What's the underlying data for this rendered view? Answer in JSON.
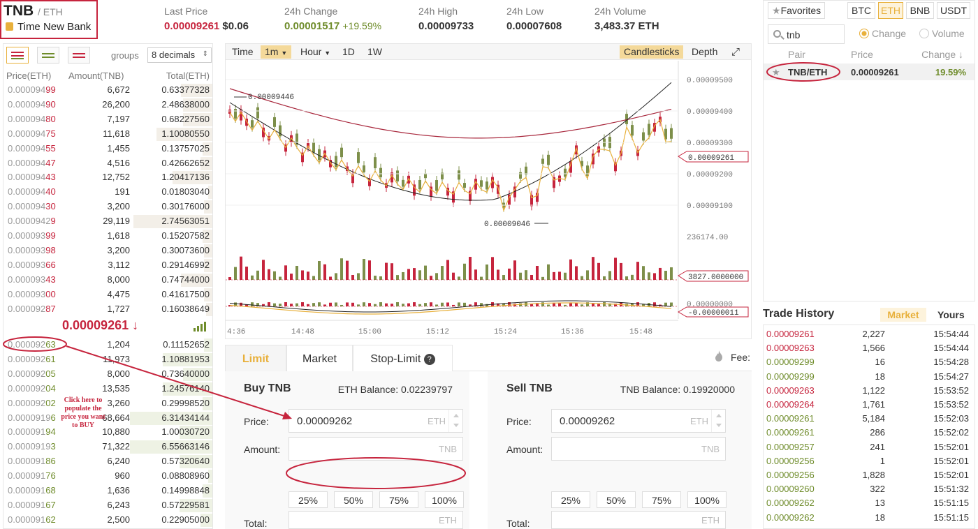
{
  "header": {
    "base": "TNB",
    "quote": "/ ETH",
    "name": "Time New Bank",
    "stats": {
      "last_price_label": "Last Price",
      "last_price": "0.00009261",
      "last_price_usd": "$0.06",
      "change_label": "24h Change",
      "change": "0.00001517",
      "change_pct": "+19.59%",
      "high_label": "24h High",
      "high": "0.00009733",
      "low_label": "24h Low",
      "low": "0.00007608",
      "volume_label": "24h Volume",
      "volume": "3,483.37 ETH"
    }
  },
  "orderbook": {
    "groups_label": "groups",
    "groups_value": "8 decimals",
    "columns": [
      "Price(ETH)",
      "Amount(TNB)",
      "Total(ETH)"
    ],
    "asks": [
      {
        "pre": "0.000094",
        "hi": "99",
        "amount": "6,672",
        "total": "0.63377328",
        "depth": 0.38
      },
      {
        "pre": "0.000094",
        "hi": "90",
        "amount": "26,200",
        "total": "2.48638000",
        "depth": 0.36
      },
      {
        "pre": "0.000094",
        "hi": "80",
        "amount": "7,197",
        "total": "0.68227560",
        "depth": 0.36
      },
      {
        "pre": "0.000094",
        "hi": "75",
        "amount": "11,618",
        "total": "1.10080550",
        "depth": 0.68
      },
      {
        "pre": "0.000094",
        "hi": "55",
        "amount": "1,455",
        "total": "0.13757025",
        "depth": 0.12
      },
      {
        "pre": "0.000094",
        "hi": "47",
        "amount": "4,516",
        "total": "0.42662652",
        "depth": 0.14
      },
      {
        "pre": "0.000094",
        "hi": "43",
        "amount": "12,752",
        "total": "1.20417136",
        "depth": 0.48
      },
      {
        "pre": "0.000094",
        "hi": "40",
        "amount": "191",
        "total": "0.01803040",
        "depth": 0.05
      },
      {
        "pre": "0.000094",
        "hi": "30",
        "amount": "3,200",
        "total": "0.30176000",
        "depth": 0.1
      },
      {
        "pre": "0.0000942",
        "hi": "9",
        "amount": "29,119",
        "total": "2.74563051",
        "depth": 0.96
      },
      {
        "pre": "0.000093",
        "hi": "99",
        "amount": "1,618",
        "total": "0.15207582",
        "depth": 0.12
      },
      {
        "pre": "0.000093",
        "hi": "98",
        "amount": "3,200",
        "total": "0.30073600",
        "depth": 0.1
      },
      {
        "pre": "0.000093",
        "hi": "66",
        "amount": "3,112",
        "total": "0.29146992",
        "depth": 0.1
      },
      {
        "pre": "0.000093",
        "hi": "43",
        "amount": "8,000",
        "total": "0.74744000",
        "depth": 0.38
      },
      {
        "pre": "0.000093",
        "hi": "00",
        "amount": "4,475",
        "total": "0.41617500",
        "depth": 0.1
      },
      {
        "pre": "0.000092",
        "hi": "87",
        "amount": "1,727",
        "total": "0.16038649",
        "depth": 0.08
      }
    ],
    "mid_price": "0.00009261",
    "mid_arrow": "↓",
    "bids": [
      {
        "pre": "0.000092",
        "hi": "63",
        "amount": "1,204",
        "total": "0.11152652",
        "depth": 0.1
      },
      {
        "pre": "0.000092",
        "hi": "61",
        "amount": "11,973",
        "total": "1.10881953",
        "depth": 0.6
      },
      {
        "pre": "0.000092",
        "hi": "05",
        "amount": "8,000",
        "total": "0.73640000",
        "depth": 0.36
      },
      {
        "pre": "0.000092",
        "hi": "04",
        "amount": "13,535",
        "total": "1.24576140",
        "depth": 0.6
      },
      {
        "pre": "0.000092",
        "hi": "02",
        "amount": "3,260",
        "total": "0.29998520",
        "depth": 0.12
      },
      {
        "pre": "0.0000919",
        "hi": "6",
        "amount": "68,664",
        "total": "6.31434144",
        "depth": 1.0
      },
      {
        "pre": "0.000091",
        "hi": "94",
        "amount": "10,880",
        "total": "1.00030720",
        "depth": 0.4
      },
      {
        "pre": "0.0000919",
        "hi": "3",
        "amount": "71,322",
        "total": "6.55663146",
        "depth": 1.0
      },
      {
        "pre": "0.000091",
        "hi": "86",
        "amount": "6,240",
        "total": "0.57320640",
        "depth": 0.4
      },
      {
        "pre": "0.000091",
        "hi": "76",
        "amount": "960",
        "total": "0.08808960",
        "depth": 0.05
      },
      {
        "pre": "0.000091",
        "hi": "68",
        "amount": "1,636",
        "total": "0.14998848",
        "depth": 0.12
      },
      {
        "pre": "0.000091",
        "hi": "67",
        "amount": "6,243",
        "total": "0.57229581",
        "depth": 0.4
      },
      {
        "pre": "0.000091",
        "hi": "62",
        "amount": "2,500",
        "total": "0.22905000",
        "depth": 0.14
      }
    ],
    "annotation": "Click here to populate the price you want to BUY"
  },
  "chart": {
    "toolbar": {
      "time": "Time",
      "interval": "1m",
      "hour": "Hour",
      "d1": "1D",
      "w1": "1W",
      "candles": "Candlesticks",
      "depth": "Depth"
    },
    "price_ticks": [
      "0.00009500",
      "0.00009400",
      "0.00009300",
      "0.00009200",
      "0.00009100"
    ],
    "current_price_label": "0.00009261",
    "high_marker": "0.00009446",
    "low_marker": "0.00009046",
    "volume_max_label": "236174.00",
    "volume_current_label": "3827.0000000",
    "macd_labels": [
      "0.00000000",
      "-0.00000011"
    ],
    "time_ticks": [
      "4:36",
      "14:48",
      "15:00",
      "15:12",
      "15:24",
      "15:36",
      "15:48"
    ]
  },
  "form": {
    "tabs": [
      "Limit",
      "Market",
      "Stop-Limit"
    ],
    "fee_label": "Fee:",
    "buy": {
      "title": "Buy TNB",
      "balance": "ETH Balance: 0.02239797",
      "price_label": "Price:",
      "price_value": "0.00009262",
      "price_unit": "ETH",
      "amount_label": "Amount:",
      "amount_unit": "TNB",
      "total_label": "Total:",
      "total_unit": "ETH"
    },
    "sell": {
      "title": "Sell TNB",
      "balance": "TNB Balance: 0.19920000",
      "price_label": "Price:",
      "price_value": "0.00009262",
      "price_unit": "ETH",
      "amount_label": "Amount:",
      "amount_unit": "TNB",
      "total_label": "Total:",
      "total_unit": "ETH"
    },
    "percents": [
      "25%",
      "50%",
      "75%",
      "100%"
    ]
  },
  "markets": {
    "favorites": "Favorites",
    "tabs": [
      "BTC",
      "ETH",
      "BNB",
      "USDT"
    ],
    "search": "tnb",
    "radio_change": "Change",
    "radio_volume": "Volume",
    "cols": [
      "Pair",
      "Price",
      "Change ↓"
    ],
    "row": {
      "pair": "TNB/ETH",
      "price": "0.00009261",
      "change": "19.59%"
    }
  },
  "history": {
    "title": "Trade History",
    "tab_market": "Market",
    "tab_yours": "Yours",
    "rows": [
      {
        "price": "0.00009261",
        "amount": "2,227",
        "time": "15:54:44",
        "side": "sell"
      },
      {
        "price": "0.00009263",
        "amount": "1,566",
        "time": "15:54:44",
        "side": "sell"
      },
      {
        "price": "0.00009299",
        "amount": "16",
        "time": "15:54:28",
        "side": "buy"
      },
      {
        "price": "0.00009299",
        "amount": "18",
        "time": "15:54:27",
        "side": "buy"
      },
      {
        "price": "0.00009263",
        "amount": "1,122",
        "time": "15:53:52",
        "side": "sell"
      },
      {
        "price": "0.00009264",
        "amount": "1,761",
        "time": "15:53:52",
        "side": "sell"
      },
      {
        "price": "0.00009261",
        "amount": "5,184",
        "time": "15:52:03",
        "side": "buy"
      },
      {
        "price": "0.00009261",
        "amount": "286",
        "time": "15:52:02",
        "side": "buy"
      },
      {
        "price": "0.00009257",
        "amount": "241",
        "time": "15:52:01",
        "side": "buy"
      },
      {
        "price": "0.00009256",
        "amount": "1",
        "time": "15:52:01",
        "side": "buy"
      },
      {
        "price": "0.00009256",
        "amount": "1,828",
        "time": "15:52:01",
        "side": "buy"
      },
      {
        "price": "0.00009260",
        "amount": "322",
        "time": "15:51:32",
        "side": "buy"
      },
      {
        "price": "0.00009262",
        "amount": "13",
        "time": "15:51:15",
        "side": "buy"
      },
      {
        "price": "0.00009262",
        "amount": "18",
        "time": "15:51:15",
        "side": "buy"
      }
    ]
  },
  "colors": {
    "sell": "#c6243d",
    "buy": "#6f8c2b",
    "accent": "#e8b03b"
  }
}
